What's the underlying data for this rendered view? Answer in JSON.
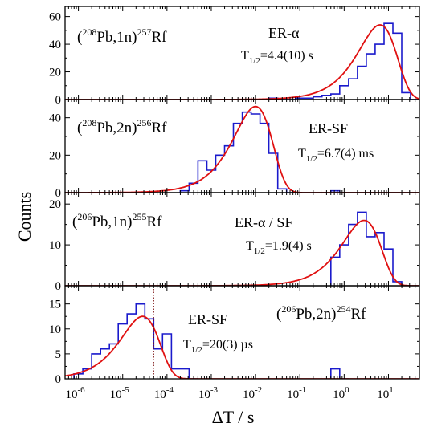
{
  "chart_data": {
    "type": "histogram",
    "xlabel": "ΔT / s",
    "ylabel": "Counts",
    "x_scale": "log",
    "xlim": [
      5e-07,
      50
    ],
    "x_tick_labels": [
      {
        "base": "10",
        "exp": "-6",
        "value": 1e-06
      },
      {
        "base": "10",
        "exp": "-5",
        "value": 1e-05
      },
      {
        "base": "10",
        "exp": "-4",
        "value": 0.0001
      },
      {
        "base": "10",
        "exp": "-3",
        "value": 0.001
      },
      {
        "base": "10",
        "exp": "-2",
        "value": 0.01
      },
      {
        "base": "10",
        "exp": "-1",
        "value": 0.1
      },
      {
        "base": "10",
        "exp": "0",
        "value": 1
      },
      {
        "base": "10",
        "exp": "1",
        "value": 10
      }
    ],
    "colors": {
      "histogram": "#1a1acc",
      "fit": "#e01010",
      "marker_line": "#7a1010"
    },
    "panels": [
      {
        "reaction": {
          "open": "(",
          "a_sup": "208",
          "a": "Pb,1n)",
          "b_sup": "257",
          "b": "Rf"
        },
        "decay_mode": "ER-α",
        "half_life": {
          "pre": "T",
          "sub": "1/2",
          "post": "=4.4(10) s"
        },
        "ylim": [
          0,
          65
        ],
        "y_ticks": [
          0,
          20,
          40,
          60
        ],
        "fit_peak": {
          "log10_center": 0.81,
          "height": 54
        },
        "histogram": [
          [
            -1.6,
            1
          ],
          [
            -1.4,
            0
          ],
          [
            -1.2,
            0
          ],
          [
            -1.0,
            1
          ],
          [
            -0.8,
            1
          ],
          [
            -0.6,
            2
          ],
          [
            -0.4,
            3
          ],
          [
            -0.2,
            4
          ],
          [
            0.0,
            10
          ],
          [
            0.2,
            15
          ],
          [
            0.4,
            24
          ],
          [
            0.6,
            33
          ],
          [
            0.8,
            40
          ],
          [
            1.0,
            55
          ],
          [
            1.2,
            48
          ],
          [
            1.4,
            5
          ],
          [
            1.6,
            0
          ]
        ]
      },
      {
        "reaction": {
          "open": "(",
          "a_sup": "208",
          "a": "Pb,2n)",
          "b_sup": "256",
          "b": "Rf"
        },
        "decay_mode": "ER-SF",
        "half_life": {
          "pre": "T",
          "sub": "1/2",
          "post": "=6.7(4) ms"
        },
        "ylim": [
          0,
          48
        ],
        "y_ticks": [
          0,
          20,
          40
        ],
        "fit_peak": {
          "log10_center": -2.0,
          "height": 46
        },
        "histogram": [
          [
            -3.6,
            1
          ],
          [
            -3.4,
            5
          ],
          [
            -3.2,
            17
          ],
          [
            -3.0,
            12
          ],
          [
            -2.8,
            20
          ],
          [
            -2.6,
            25
          ],
          [
            -2.4,
            37
          ],
          [
            -2.2,
            43
          ],
          [
            -2.0,
            42
          ],
          [
            -1.8,
            37
          ],
          [
            -1.6,
            21
          ],
          [
            -1.4,
            2
          ],
          [
            -1.2,
            0
          ],
          [
            -0.2,
            1
          ]
        ]
      },
      {
        "reaction": {
          "open": "(",
          "a_sup": "206",
          "a": "Pb,1n)",
          "b_sup": "255",
          "b": "Rf"
        },
        "decay_mode": "ER-α / SF",
        "half_life": {
          "pre": "T",
          "sub": "1/2",
          "post": "=1.9(4) s"
        },
        "ylim": [
          0,
          22
        ],
        "y_ticks": [
          0,
          10,
          20
        ],
        "fit_peak": {
          "log10_center": 0.45,
          "height": 16
        },
        "histogram": [
          [
            -0.2,
            7
          ],
          [
            0.0,
            10
          ],
          [
            0.2,
            15
          ],
          [
            0.4,
            18
          ],
          [
            0.6,
            12
          ],
          [
            0.8,
            13
          ],
          [
            1.0,
            9
          ],
          [
            1.2,
            1
          ],
          [
            1.4,
            0
          ]
        ]
      },
      {
        "reaction": {
          "open": "(",
          "a_sup": "206",
          "a": "Pb,2n)",
          "b_sup": "254",
          "b": "Rf"
        },
        "decay_mode": "ER-SF",
        "half_life": {
          "pre": "T",
          "sub": "1/2",
          "post": "=20(3) µs"
        },
        "ylim": [
          0,
          18
        ],
        "y_ticks": [
          0,
          5,
          10,
          15
        ],
        "marker_x": 5e-05,
        "fit_peak": {
          "log10_center": -4.55,
          "height": 12.5
        },
        "histogram": [
          [
            -6.0,
            1
          ],
          [
            -5.8,
            2
          ],
          [
            -5.6,
            5
          ],
          [
            -5.4,
            6
          ],
          [
            -5.2,
            7
          ],
          [
            -5.0,
            11
          ],
          [
            -4.8,
            13
          ],
          [
            -4.6,
            15
          ],
          [
            -4.4,
            12
          ],
          [
            -4.2,
            6
          ],
          [
            -4.0,
            9
          ],
          [
            -3.8,
            2
          ],
          [
            -3.6,
            2
          ],
          [
            -3.4,
            0
          ],
          [
            -0.2,
            2
          ],
          [
            0.0,
            0
          ]
        ]
      }
    ]
  }
}
